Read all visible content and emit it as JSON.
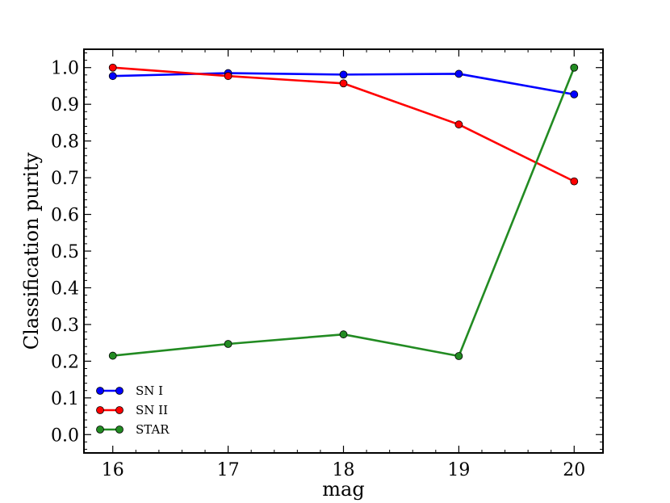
{
  "chart_data": {
    "type": "line",
    "title": "",
    "xlabel": "mag",
    "ylabel": "Classification purity",
    "x": [
      16,
      17,
      18,
      19,
      20
    ],
    "xlim": [
      15.75,
      20.25
    ],
    "ylim": [
      -0.05,
      1.05
    ],
    "xticks": [
      "16",
      "17",
      "18",
      "19",
      "20"
    ],
    "yticks": [
      "0.0",
      "0.1",
      "0.2",
      "0.3",
      "0.4",
      "0.5",
      "0.6",
      "0.7",
      "0.8",
      "0.9",
      "1.0"
    ],
    "grid": false,
    "legend_position": "bottom-left",
    "series": [
      {
        "name": "SN I",
        "color": "#0000ff",
        "values": [
          0.977,
          0.985,
          0.981,
          0.983,
          0.927
        ]
      },
      {
        "name": "SN II",
        "color": "#ff0000",
        "values": [
          1.0,
          0.977,
          0.957,
          0.845,
          0.69
        ]
      },
      {
        "name": "STAR",
        "color": "#228b22",
        "values": [
          0.215,
          0.247,
          0.273,
          0.214,
          1.0
        ]
      }
    ]
  }
}
